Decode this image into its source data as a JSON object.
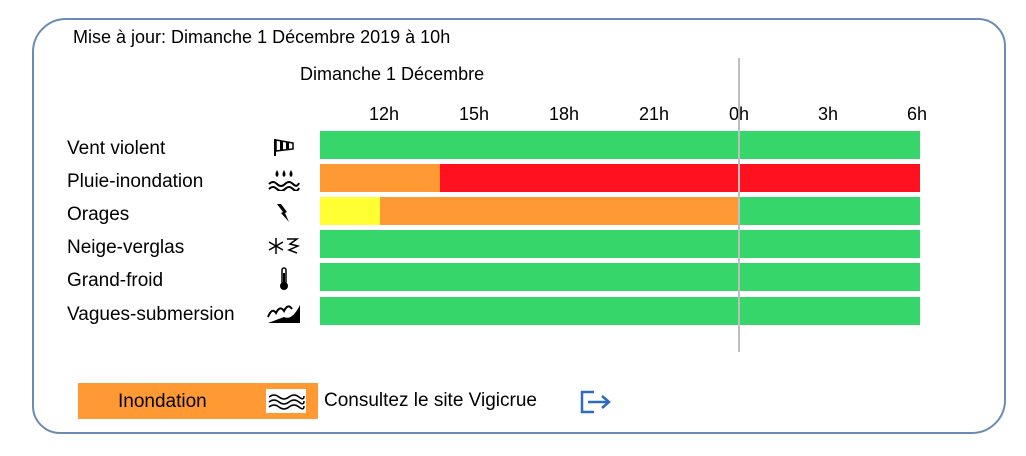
{
  "header": {
    "update_text": "Mise à jour: Dimanche 1 Décembre 2019 à 10h"
  },
  "timeline": {
    "day_label": "Dimanche 1 Décembre",
    "hours": [
      "12h",
      "15h",
      "18h",
      "21h",
      "0h",
      "3h",
      "6h"
    ]
  },
  "colors": {
    "green": "#36d66a",
    "orange": "#ff9933",
    "red": "#ff1120",
    "yellow": "#ffff33"
  },
  "rows": [
    {
      "label": "Vent violent",
      "icon": "windsock-icon",
      "segments": [
        {
          "color": "green",
          "hours": 20
        }
      ]
    },
    {
      "label": "Pluie-inondation",
      "icon": "rain-flood-icon",
      "segments": [
        {
          "color": "orange",
          "hours": 4
        },
        {
          "color": "red",
          "hours": 16
        }
      ]
    },
    {
      "label": "Orages",
      "icon": "lightning-icon",
      "segments": [
        {
          "color": "yellow",
          "hours": 2
        },
        {
          "color": "orange",
          "hours": 12
        },
        {
          "color": "green",
          "hours": 6
        }
      ]
    },
    {
      "label": "Neige-verglas",
      "icon": "snow-ice-icon",
      "segments": [
        {
          "color": "green",
          "hours": 20
        }
      ]
    },
    {
      "label": "Grand-froid",
      "icon": "thermometer-icon",
      "segments": [
        {
          "color": "green",
          "hours": 20
        }
      ]
    },
    {
      "label": "Vagues-submersion",
      "icon": "waves-submersion-icon",
      "segments": [
        {
          "color": "green",
          "hours": 20
        }
      ]
    }
  ],
  "legend": {
    "label": "Inondation",
    "icon": "flood-waves-icon",
    "color": "#ff9933"
  },
  "vigicrue": {
    "link_text": "Consultez le site Vigicrue",
    "icon": "external-link-icon"
  }
}
